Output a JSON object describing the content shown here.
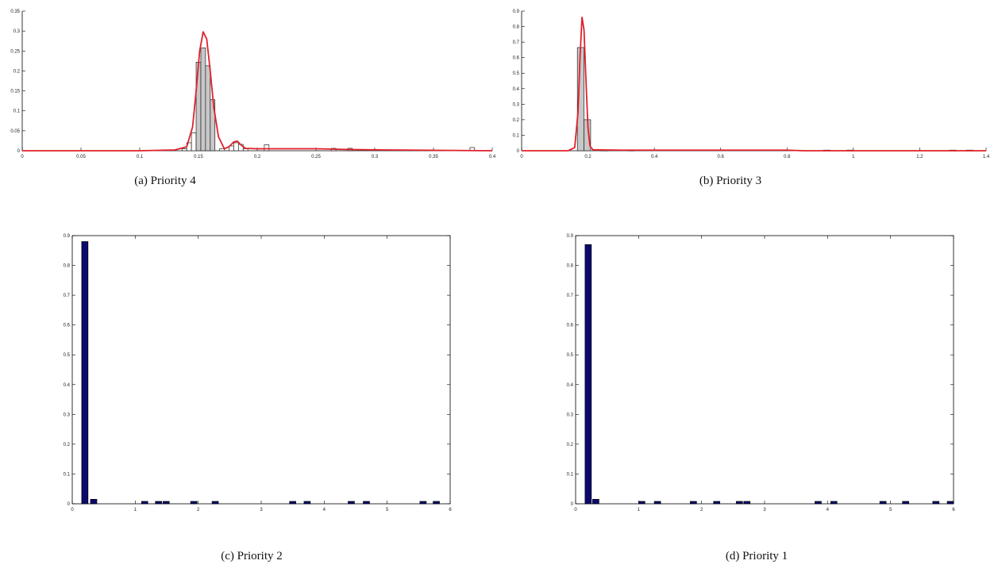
{
  "chart_data": [
    {
      "panel": "a",
      "type": "bar",
      "title": "",
      "xlabel": "",
      "ylabel": "",
      "caption": "(a) Priority 4",
      "xlim": [
        0,
        0.4
      ],
      "ylim": [
        0,
        0.35
      ],
      "xticks": [
        "0",
        "0.05",
        "0.1",
        "0.15",
        "0.2",
        "0.25",
        "0.3",
        "0.35",
        "0.4"
      ],
      "yticks": [
        "0",
        "0.05",
        "0.1",
        "0.15",
        "0.2",
        "0.25",
        "0.3",
        "0.35"
      ],
      "grid": false,
      "colors": {
        "bar_fill": "#ffffff",
        "bar_highlight": "#c8c8c8",
        "bar_edge": "#222222",
        "fit_line": "#e0202a"
      },
      "bins": [
        {
          "x": 0.138,
          "y": 0.005
        },
        {
          "x": 0.142,
          "y": 0.02
        },
        {
          "x": 0.146,
          "y": 0.045
        },
        {
          "x": 0.15,
          "y": 0.222
        },
        {
          "x": 0.154,
          "y": 0.258
        },
        {
          "x": 0.158,
          "y": 0.213
        },
        {
          "x": 0.162,
          "y": 0.128
        },
        {
          "x": 0.17,
          "y": 0.005
        },
        {
          "x": 0.178,
          "y": 0.012
        },
        {
          "x": 0.182,
          "y": 0.02
        },
        {
          "x": 0.186,
          "y": 0.016
        },
        {
          "x": 0.19,
          "y": 0.005
        },
        {
          "x": 0.208,
          "y": 0.015
        },
        {
          "x": 0.265,
          "y": 0.006
        },
        {
          "x": 0.279,
          "y": 0.006
        },
        {
          "x": 0.383,
          "y": 0.008
        }
      ],
      "bin_width": 0.004,
      "fit_line": [
        [
          0,
          0
        ],
        [
          0.1,
          0
        ],
        [
          0.13,
          0.002
        ],
        [
          0.14,
          0.01
        ],
        [
          0.145,
          0.06
        ],
        [
          0.148,
          0.15
        ],
        [
          0.151,
          0.25
        ],
        [
          0.154,
          0.298
        ],
        [
          0.157,
          0.28
        ],
        [
          0.16,
          0.2
        ],
        [
          0.163,
          0.11
        ],
        [
          0.167,
          0.035
        ],
        [
          0.172,
          0.005
        ],
        [
          0.176,
          0.01
        ],
        [
          0.18,
          0.022
        ],
        [
          0.183,
          0.024
        ],
        [
          0.186,
          0.015
        ],
        [
          0.19,
          0.006
        ],
        [
          0.2,
          0.005
        ],
        [
          0.25,
          0.005
        ],
        [
          0.28,
          0.003
        ],
        [
          0.31,
          0.002
        ],
        [
          0.4,
          0
        ]
      ]
    },
    {
      "panel": "b",
      "type": "bar",
      "title": "",
      "xlabel": "",
      "ylabel": "",
      "caption": "(b) Priority 3",
      "xlim": [
        0,
        1.4
      ],
      "ylim": [
        0,
        0.9
      ],
      "xticks": [
        "0",
        "0.2",
        "0.4",
        "0.6",
        "0.8",
        "1",
        "1.2",
        "1.4"
      ],
      "yticks": [
        "0",
        "0.1",
        "0.2",
        "0.3",
        "0.4",
        "0.5",
        "0.6",
        "0.7",
        "0.8",
        "0.9"
      ],
      "grid": false,
      "colors": {
        "bar_fill": "#ffffff",
        "bar_highlight": "#c8c8c8",
        "bar_edge": "#222222",
        "fit_line": "#e0202a"
      },
      "bins": [
        {
          "x": 0.178,
          "y": 0.665
        },
        {
          "x": 0.198,
          "y": 0.2
        },
        {
          "x": 0.25,
          "y": 0.004
        },
        {
          "x": 0.33,
          "y": 0.004
        },
        {
          "x": 0.92,
          "y": 0.004
        },
        {
          "x": 0.99,
          "y": 0.004
        },
        {
          "x": 1.3,
          "y": 0.004
        },
        {
          "x": 1.35,
          "y": 0.004
        }
      ],
      "bin_width": 0.02,
      "fit_line": [
        [
          0,
          0
        ],
        [
          0.14,
          0
        ],
        [
          0.16,
          0.02
        ],
        [
          0.17,
          0.25
        ],
        [
          0.176,
          0.6
        ],
        [
          0.182,
          0.86
        ],
        [
          0.188,
          0.78
        ],
        [
          0.194,
          0.45
        ],
        [
          0.2,
          0.15
        ],
        [
          0.206,
          0.03
        ],
        [
          0.215,
          0.006
        ],
        [
          0.3,
          0.004
        ],
        [
          0.8,
          0.004
        ],
        [
          0.85,
          0
        ],
        [
          1.4,
          0
        ]
      ]
    },
    {
      "panel": "c",
      "type": "bar",
      "title": "",
      "xlabel": "",
      "ylabel": "",
      "caption": "(c) Priority 2",
      "xlim": [
        0,
        6
      ],
      "ylim": [
        0,
        0.9
      ],
      "xticks": [
        "0",
        "1",
        "2",
        "3",
        "4",
        "5",
        "6"
      ],
      "yticks": [
        "0",
        "0.1",
        "0.2",
        "0.3",
        "0.4",
        "0.5",
        "0.6",
        "0.7",
        "0.8",
        "0.9"
      ],
      "grid": false,
      "colors": {
        "bar_fill": "#0a0a6e",
        "bar_edge": "#000000"
      },
      "bin_width": 0.1,
      "bins": [
        {
          "x": 0.2,
          "y": 0.88
        },
        {
          "x": 0.34,
          "y": 0.015
        },
        {
          "x": 1.15,
          "y": 0.008
        },
        {
          "x": 1.37,
          "y": 0.008
        },
        {
          "x": 1.49,
          "y": 0.008
        },
        {
          "x": 1.93,
          "y": 0.008
        },
        {
          "x": 2.27,
          "y": 0.008
        },
        {
          "x": 3.5,
          "y": 0.008
        },
        {
          "x": 3.73,
          "y": 0.008
        },
        {
          "x": 4.43,
          "y": 0.008
        },
        {
          "x": 4.67,
          "y": 0.008
        },
        {
          "x": 5.57,
          "y": 0.008
        },
        {
          "x": 5.78,
          "y": 0.008
        }
      ]
    },
    {
      "panel": "d",
      "type": "bar",
      "title": "",
      "xlabel": "",
      "ylabel": "",
      "caption": "(d) Priority 1",
      "xlim": [
        0,
        6
      ],
      "ylim": [
        0,
        0.9
      ],
      "xticks": [
        "0",
        "1",
        "2",
        "3",
        "4",
        "5",
        "6"
      ],
      "yticks": [
        "0",
        "0.1",
        "0.2",
        "0.3",
        "0.4",
        "0.5",
        "0.6",
        "0.7",
        "0.8",
        "0.9"
      ],
      "grid": false,
      "colors": {
        "bar_fill": "#0a0a6e",
        "bar_edge": "#000000"
      },
      "bin_width": 0.1,
      "bins": [
        {
          "x": 0.2,
          "y": 0.87
        },
        {
          "x": 0.32,
          "y": 0.015
        },
        {
          "x": 1.05,
          "y": 0.008
        },
        {
          "x": 1.3,
          "y": 0.008
        },
        {
          "x": 1.87,
          "y": 0.008
        },
        {
          "x": 2.24,
          "y": 0.008
        },
        {
          "x": 2.6,
          "y": 0.008
        },
        {
          "x": 2.72,
          "y": 0.008
        },
        {
          "x": 3.85,
          "y": 0.008
        },
        {
          "x": 4.1,
          "y": 0.008
        },
        {
          "x": 4.88,
          "y": 0.008
        },
        {
          "x": 5.24,
          "y": 0.008
        },
        {
          "x": 5.72,
          "y": 0.008
        },
        {
          "x": 5.95,
          "y": 0.008
        }
      ]
    }
  ]
}
